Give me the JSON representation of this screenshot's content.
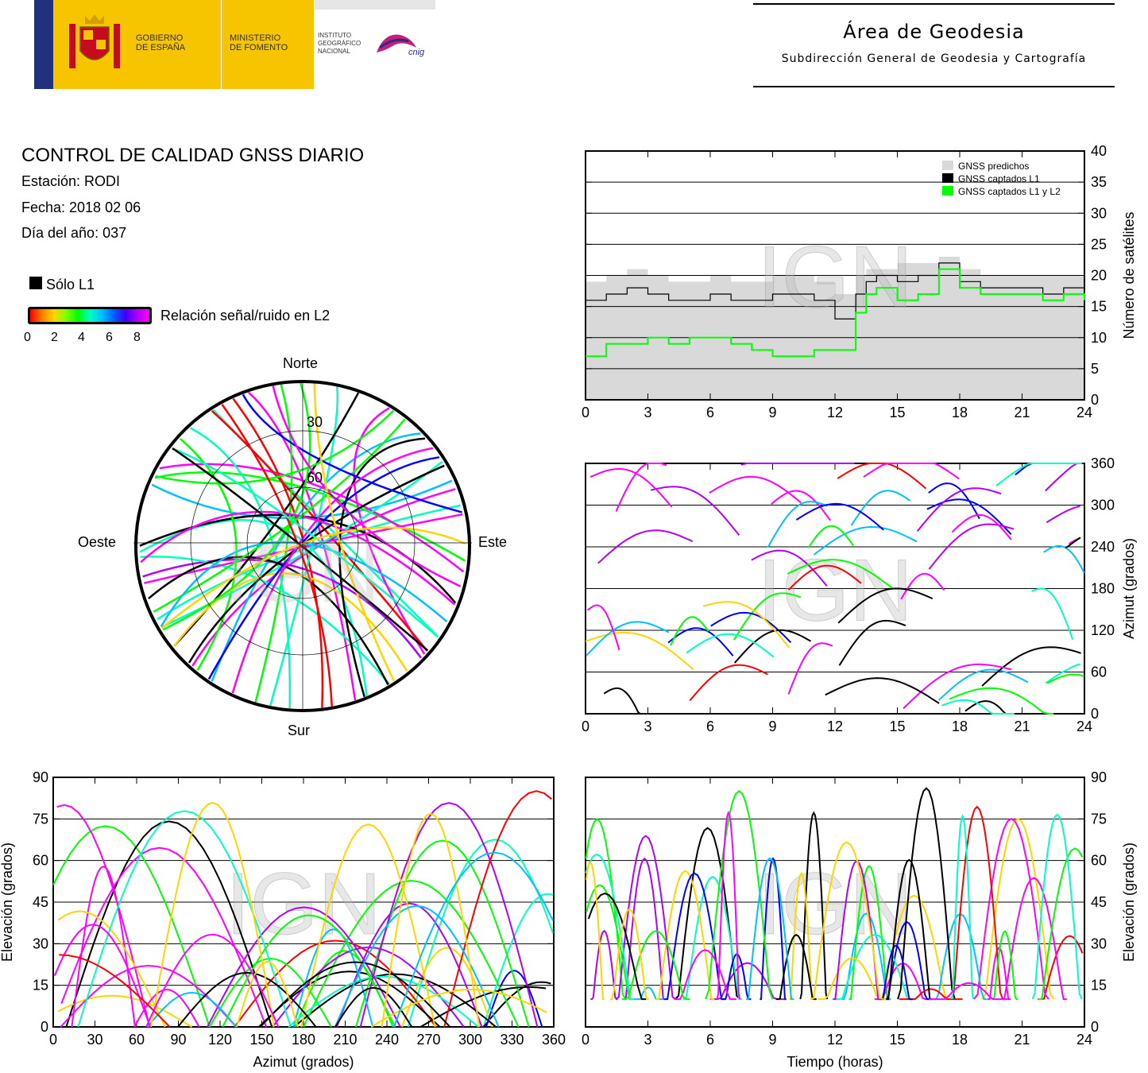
{
  "header": {
    "gobierno": "GOBIERNO\nDE ESPAÑA",
    "ministerio": "MINISTERIO\nDE FOMENTO",
    "instituto": "INSTITUTO\nGEOGRÁFICO\nNACIONAL",
    "cnig": "cnig",
    "area_title": "Área de Geodesia",
    "area_subtitle": "Subdirección General de Geodesia y Cartografía"
  },
  "report": {
    "title": "CONTROL DE CALIDAD GNSS DIARIO",
    "station": "Estación: RODI",
    "date": "Fecha: 2018 02 06",
    "doy": "Día del año: 037"
  },
  "legend": {
    "l1_only": "Sólo L1",
    "snr_label": "Relación señal/ruido en L2",
    "snr_ticks": [
      "0",
      "2",
      "4",
      "6",
      "8"
    ],
    "snr_colors": [
      "#ff0000",
      "#ff8000",
      "#ffd400",
      "#80ff00",
      "#00ff00",
      "#00ffc0",
      "#00c0ff",
      "#0060ff",
      "#4000ff",
      "#b000ff",
      "#ff00ff"
    ]
  },
  "watermark": "IGN",
  "colors": {
    "grey_fill": "#d9d9d9",
    "l1": "#000000",
    "l1l2": "#00ff00",
    "grid": "#000000"
  },
  "chart_data": [
    {
      "id": "satellites",
      "type": "area",
      "xlabel": "",
      "ylabel": "Número de satélites",
      "xlim": [
        0,
        24
      ],
      "ylim": [
        0,
        40
      ],
      "xticks": [
        "0",
        "3",
        "6",
        "9",
        "12",
        "15",
        "18",
        "21",
        "24"
      ],
      "yticks": [
        "0",
        "5",
        "10",
        "15",
        "20",
        "25",
        "30",
        "35",
        "40"
      ],
      "legend_position": "top-right",
      "grid": true,
      "series": [
        {
          "name": "GNSS predichos",
          "color": "#d9d9d9",
          "x": [
            0,
            1,
            2,
            3,
            4,
            5,
            6,
            7,
            8,
            9,
            10,
            11,
            12,
            13,
            13.5,
            14,
            15,
            16,
            17,
            18,
            19,
            20,
            21,
            22,
            23,
            24
          ],
          "values": [
            19,
            20,
            21,
            20,
            19,
            19,
            20,
            19,
            19,
            20,
            20,
            19,
            17,
            20,
            21,
            21,
            22,
            22,
            23,
            21,
            20,
            20,
            20,
            20,
            20,
            20
          ]
        },
        {
          "name": "GNSS captados L1",
          "color": "#000000",
          "x": [
            0,
            1,
            2,
            3,
            4,
            5,
            6,
            7,
            8,
            9,
            10,
            11,
            12,
            13,
            13.5,
            14,
            15,
            16,
            17,
            18,
            19,
            20,
            21,
            22,
            23,
            24
          ],
          "values": [
            16,
            17,
            18,
            17,
            16,
            16,
            17,
            16,
            16,
            17,
            17,
            16,
            13,
            17,
            19,
            20,
            19,
            20,
            22,
            19,
            18,
            18,
            18,
            17,
            18,
            17
          ]
        },
        {
          "name": "GNSS captados L1 y L2",
          "color": "#00ff00",
          "x": [
            0,
            1,
            2,
            3,
            4,
            5,
            6,
            7,
            8,
            9,
            10,
            11,
            12,
            13,
            13.5,
            14,
            15,
            16,
            17,
            18,
            19,
            20,
            21,
            22,
            23,
            24
          ],
          "values": [
            7,
            9,
            9,
            10,
            9,
            10,
            10,
            9,
            8,
            7,
            7,
            8,
            8,
            14,
            17,
            18,
            16,
            17,
            21,
            18,
            17,
            17,
            17,
            16,
            17,
            16
          ]
        }
      ]
    },
    {
      "id": "azimuth-time",
      "type": "scatter",
      "xlabel": "",
      "ylabel": "Azimut (grados)",
      "xlim": [
        0,
        24
      ],
      "ylim": [
        0,
        360
      ],
      "xticks": [
        "0",
        "3",
        "6",
        "9",
        "12",
        "15",
        "18",
        "21",
        "24"
      ],
      "yticks": [
        "0",
        "60",
        "120",
        "180",
        "240",
        "300",
        "360"
      ],
      "grid": true
    },
    {
      "id": "elevation-azimuth",
      "type": "scatter",
      "xlabel": "Azimut (grados)",
      "ylabel": "Elevación (grados)",
      "xlim": [
        0,
        360
      ],
      "ylim": [
        0,
        90
      ],
      "xticks": [
        "0",
        "30",
        "60",
        "90",
        "120",
        "150",
        "180",
        "210",
        "240",
        "270",
        "300",
        "330",
        "360"
      ],
      "yticks": [
        "0",
        "15",
        "30",
        "45",
        "60",
        "75",
        "90"
      ],
      "grid": true
    },
    {
      "id": "elevation-time",
      "type": "scatter",
      "xlabel": "Tiempo (horas)",
      "ylabel": "Elevación (grados)",
      "xlim": [
        0,
        24
      ],
      "ylim": [
        0,
        90
      ],
      "xticks": [
        "0",
        "3",
        "6",
        "9",
        "12",
        "15",
        "18",
        "21",
        "24"
      ],
      "yticks": [
        "0",
        "15",
        "30",
        "45",
        "60",
        "75",
        "90"
      ],
      "grid": true
    },
    {
      "id": "skyplot",
      "type": "scatter",
      "directions": {
        "north": "Norte",
        "south": "Sur",
        "east": "Este",
        "west": "Oeste"
      },
      "ring_labels": [
        "30",
        "60"
      ],
      "grid": true
    }
  ]
}
